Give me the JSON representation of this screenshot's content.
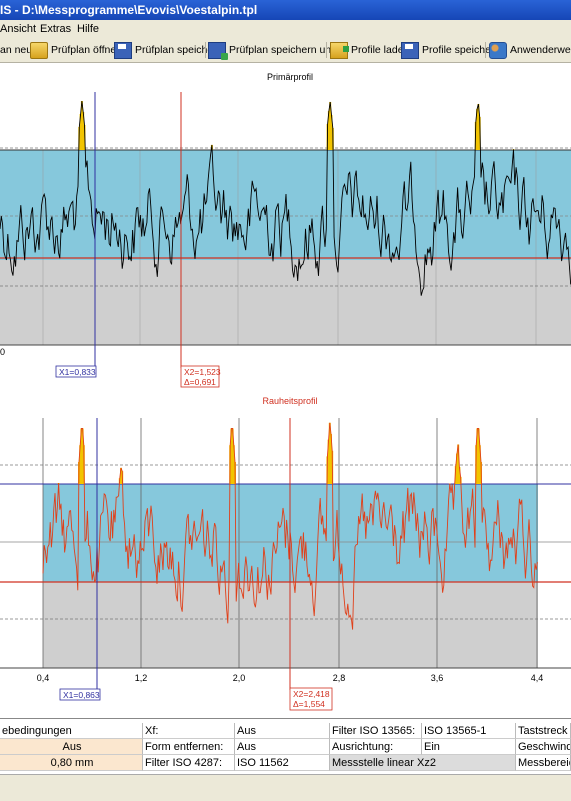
{
  "window": {
    "title": "IS - D:\\Messprogramme\\Evovis\\Voestalpin.tpl"
  },
  "menu": [
    "Ansicht",
    "Extras",
    "Hilfe"
  ],
  "toolbar": {
    "items": [
      {
        "label": "an neu",
        "icon": "new-icon"
      },
      {
        "label": "Prüfplan öffnen",
        "icon": "folder-open-icon"
      },
      {
        "label": "Prüfplan speichern",
        "icon": "save-icon"
      },
      {
        "label": "Prüfplan speichern unter",
        "icon": "save-as-icon"
      },
      {
        "label": "Profile laden",
        "icon": "load-profile-icon"
      },
      {
        "label": "Profile speichern",
        "icon": "save-profile-icon"
      },
      {
        "label": "Anwenderwechs",
        "icon": "user-switch-icon"
      }
    ]
  },
  "plots": {
    "primary": {
      "title": "Primärprofil",
      "left_label": "0",
      "cursor1": "X1=0,833",
      "cursor2": "X2=1,523",
      "delta": "Δ=0,691",
      "line_color": "#000000"
    },
    "roughness": {
      "title": "Rauheitsprofil",
      "cursor1": "X1=0,863",
      "cursor2": "X2=2,418",
      "delta": "Δ=1,554",
      "line_color": "#e0401a",
      "x_ticks": [
        "0,4",
        "1,2",
        "2,0",
        "2,8",
        "3,6",
        "4,4"
      ]
    },
    "colors": {
      "band": "#86c8dc",
      "gray": "#cfcfcf",
      "peak": "#f2c400",
      "red_line": "#d03020",
      "blue_cursor": "#3030a0"
    }
  },
  "settings": {
    "rows": [
      [
        "ebedingungen",
        "",
        "Xf:",
        "Aus",
        "Filter ISO 13565:",
        "ISO 13565-1",
        "Taststreck"
      ],
      [
        "",
        "Aus",
        "Form entfernen:",
        "Aus",
        "Ausrichtung:",
        "Ein",
        "Geschwind"
      ],
      [
        "",
        "0,80 mm",
        "Filter ISO 4287:",
        "ISO 11562",
        "Messstelle linear Xz2",
        "",
        "Messbereic"
      ]
    ]
  }
}
